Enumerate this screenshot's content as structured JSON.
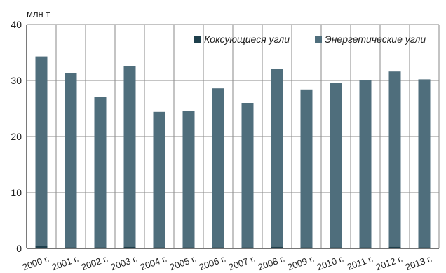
{
  "chart_data": {
    "type": "bar",
    "stacked": true,
    "ylabel": "млн т",
    "ylim": [
      0,
      40
    ],
    "yticks": [
      0,
      10,
      20,
      30,
      40
    ],
    "grid": true,
    "legend_position": "top-right",
    "categories": [
      "2000 г.",
      "2001 г.",
      "2002 г.",
      "2003 г.",
      "2004 г.",
      "2005 г.",
      "2006 г.",
      "2007 г.",
      "2008 г.",
      "2009 г.",
      "2010 г.",
      "2011 г.",
      "2012 г.",
      "2013 г."
    ],
    "series": [
      {
        "name": "Коксующиеся угли",
        "color": "#1e3f4c",
        "values": [
          0.4,
          0.2,
          0.2,
          0.3,
          0.2,
          0.2,
          0.2,
          0.2,
          0.3,
          0.2,
          0.2,
          0.2,
          0.3,
          0.2
        ]
      },
      {
        "name": "Энергетические угли",
        "color": "#4f6e7c",
        "values": [
          33.9,
          31.1,
          26.8,
          32.3,
          24.2,
          24.3,
          28.4,
          25.8,
          31.8,
          28.2,
          29.3,
          29.9,
          31.3,
          30.0
        ]
      }
    ]
  }
}
